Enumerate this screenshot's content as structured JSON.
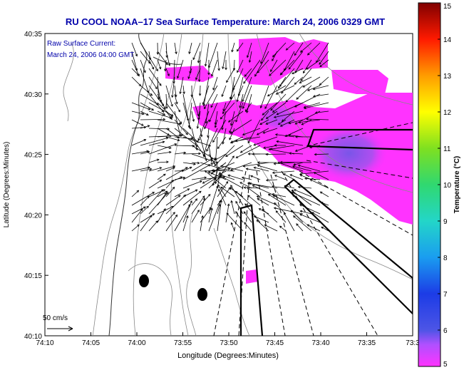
{
  "chart_data": {
    "type": "heatmap",
    "title": "RU COOL  NOAA–17  Sea Surface Temperature:  March 24, 2006 0329 GMT",
    "xlabel": "Longitude (Degrees:Minutes)",
    "ylabel": "Latitude (Degrees:Minutes)",
    "x_ticks": [
      "74:10",
      "74:05",
      "74:00",
      "73:55",
      "73:50",
      "73:45",
      "73:40",
      "73:35",
      "73:3"
    ],
    "y_ticks": [
      "40:10",
      "40:15",
      "40:20",
      "40:25",
      "40:30",
      "40:35"
    ],
    "xlim_minutes_west_of_74": [
      10,
      -30
    ],
    "ylim_minutes_north_of_40": [
      10,
      35
    ],
    "inset_label_1": "Raw Surface Current:",
    "inset_label_2": "March 24, 2006 04:00 GMT",
    "scale_label": "50 cm/s",
    "colorbar": {
      "label": "Temperature (°C)",
      "ticks": [
        "5",
        "6",
        "7",
        "8",
        "9",
        "10",
        "11",
        "12",
        "13",
        "14",
        "15"
      ],
      "range": [
        5,
        15
      ]
    },
    "sst_patches_temp_c": [
      5.3,
      5.1,
      5.4,
      5.2,
      5.6,
      5.5,
      5.2,
      5.3
    ],
    "colors": {
      "title": "#0000aa",
      "land": "#ffffff",
      "sst_high": "#ff33ff",
      "sst_low": "#8a55e6"
    }
  }
}
